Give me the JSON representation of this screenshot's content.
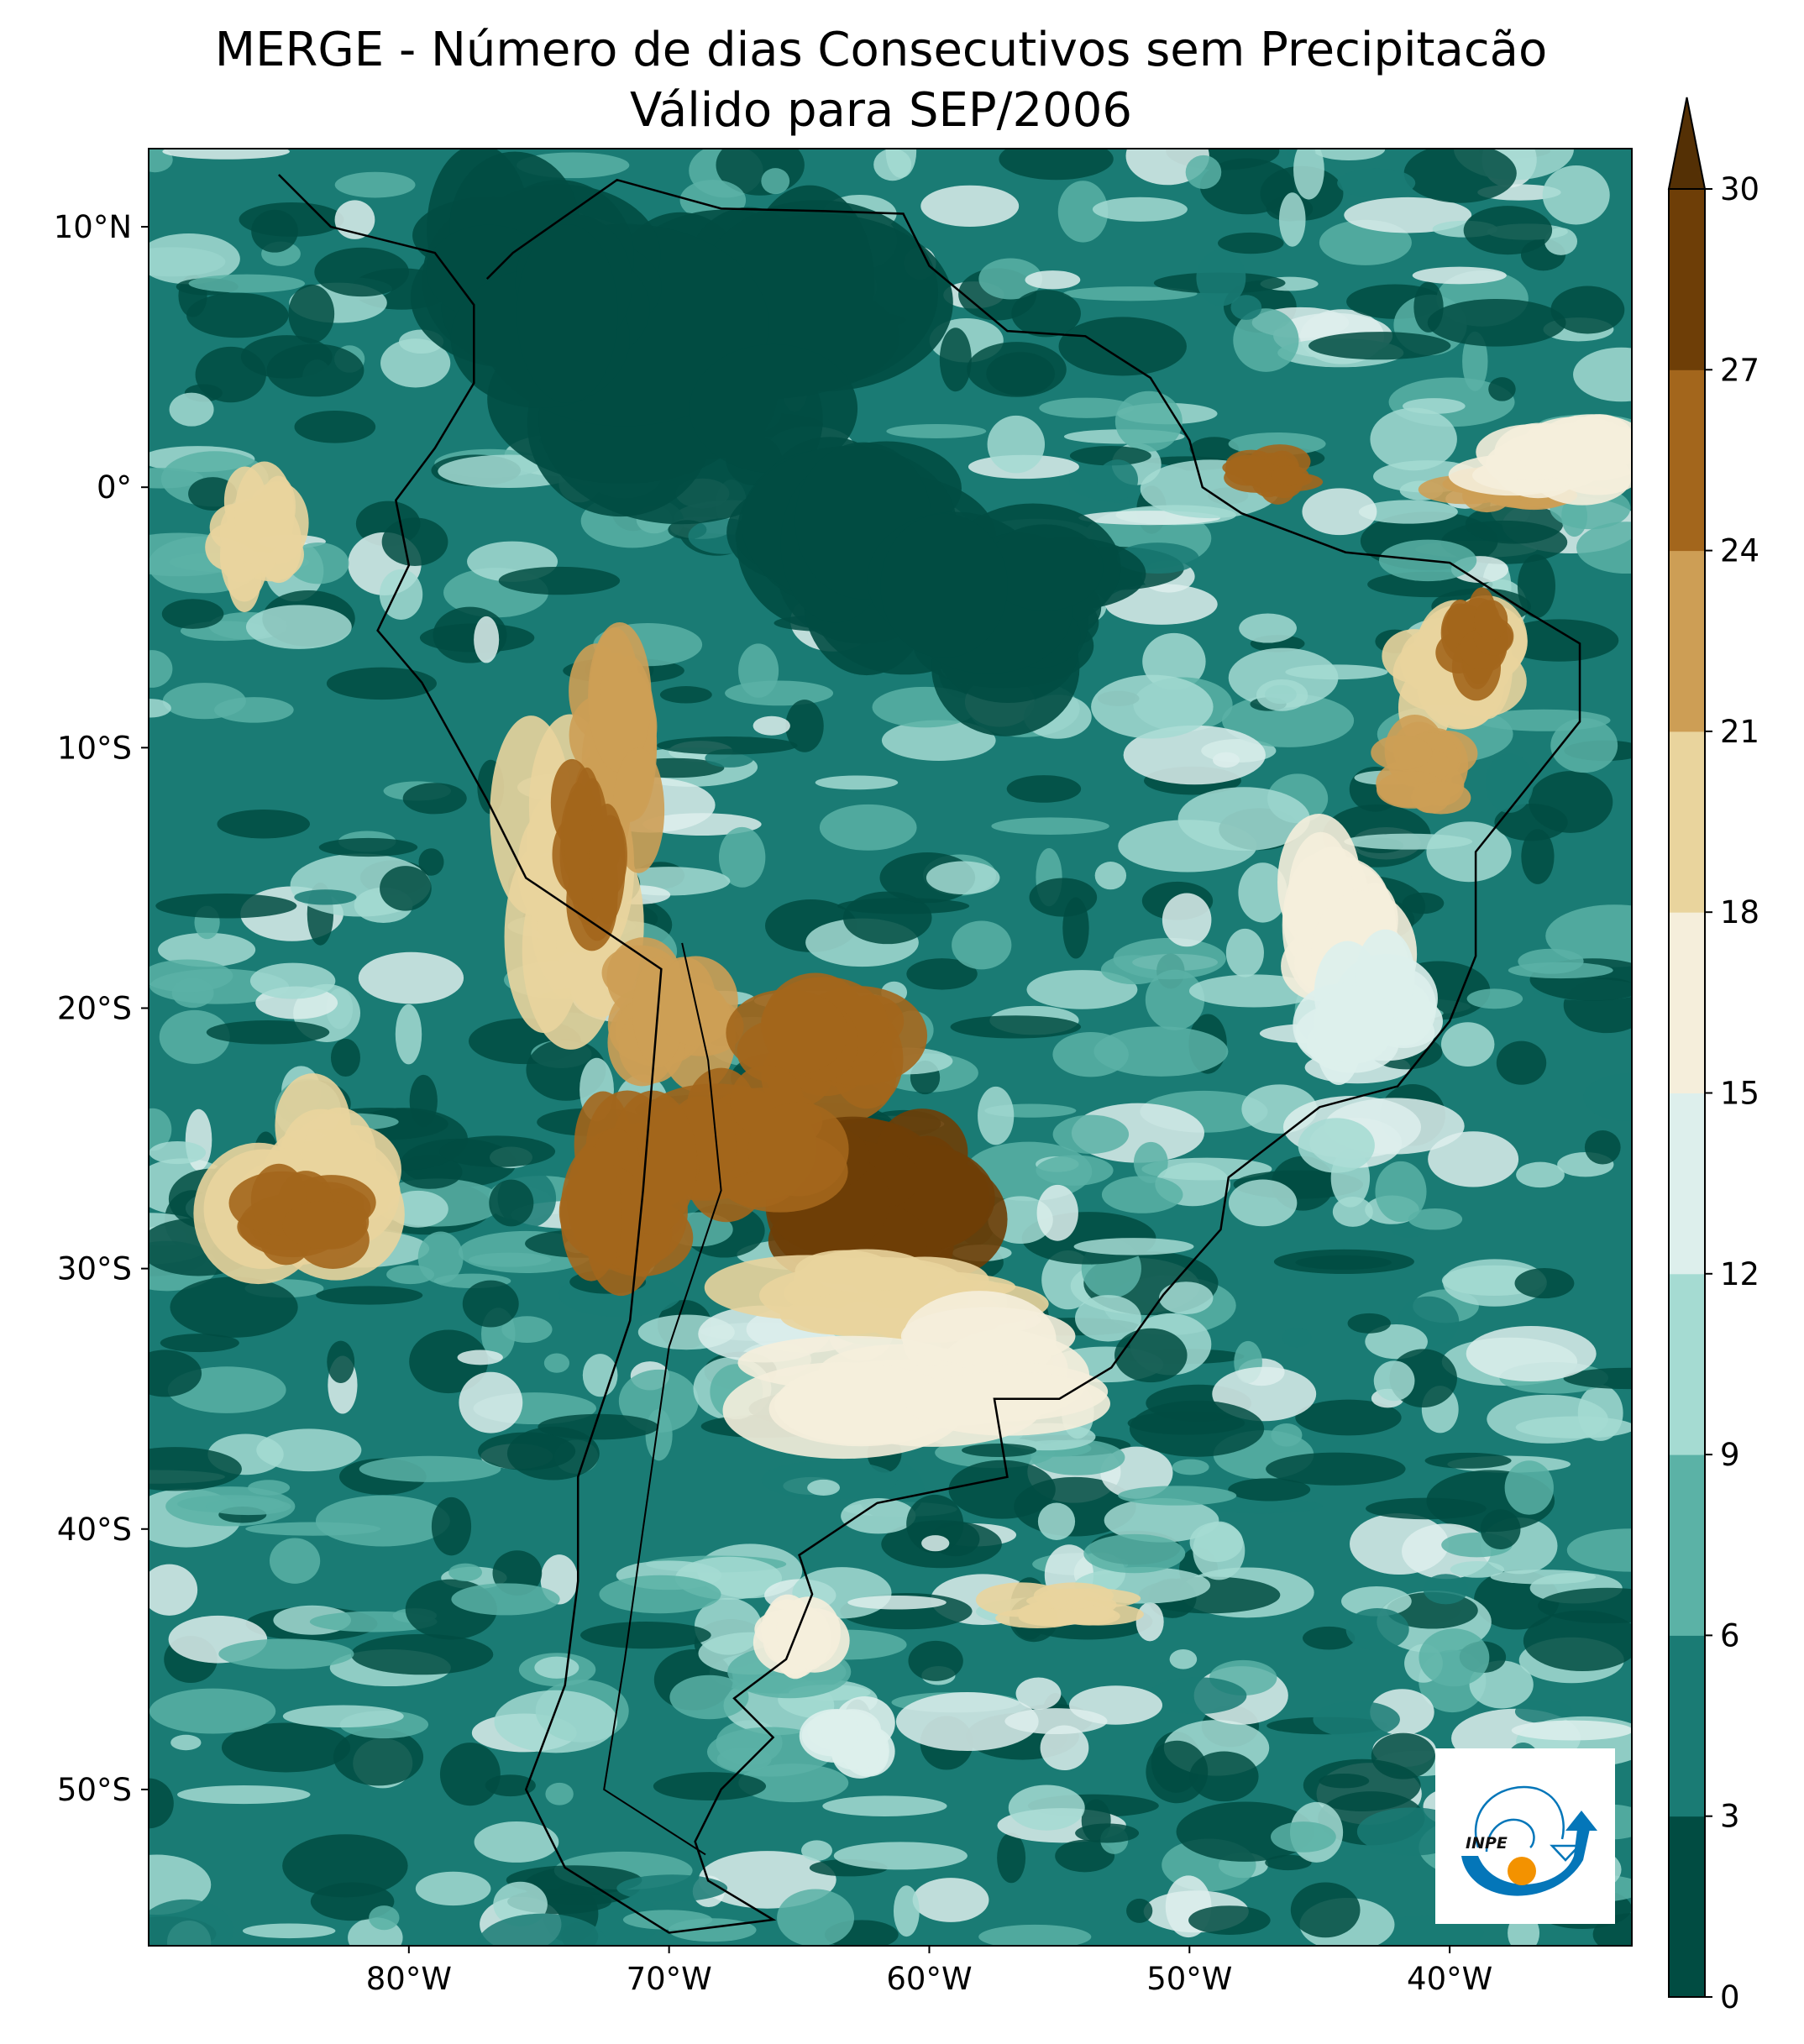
{
  "title": {
    "line1": "MERGE - Número de dias Consecutivos sem Precipitacão",
    "line2": "Válido para SEP/2006"
  },
  "map": {
    "lon_range": [
      -90,
      -33
    ],
    "lat_range": [
      -56,
      13
    ],
    "lat_ticks": [
      {
        "value": 10,
        "label": "10°N"
      },
      {
        "value": 0,
        "label": "0°"
      },
      {
        "value": -10,
        "label": "10°S"
      },
      {
        "value": -20,
        "label": "20°S"
      },
      {
        "value": -30,
        "label": "30°S"
      },
      {
        "value": -40,
        "label": "40°S"
      },
      {
        "value": -50,
        "label": "50°S"
      }
    ],
    "lon_ticks": [
      {
        "value": -80,
        "label": "80°W"
      },
      {
        "value": -70,
        "label": "70°W"
      },
      {
        "value": -60,
        "label": "60°W"
      },
      {
        "value": -50,
        "label": "50°W"
      },
      {
        "value": -40,
        "label": "40°W"
      }
    ]
  },
  "colorbar": {
    "levels": [
      0,
      3,
      6,
      9,
      12,
      15,
      18,
      21,
      24,
      27,
      30
    ],
    "labels": [
      "0",
      "3",
      "6",
      "9",
      "12",
      "15",
      "18",
      "21",
      "24",
      "27",
      "30"
    ],
    "colors": [
      "#014c42",
      "#1a7b74",
      "#5bb2a6",
      "#a5dbd2",
      "#ddefec",
      "#f5eedb",
      "#e9d49d",
      "#cd9e55",
      "#a3661c",
      "#6e3e07"
    ],
    "extend_color": "#543005",
    "extend": "max"
  },
  "logo": {
    "text": "INPE"
  }
}
